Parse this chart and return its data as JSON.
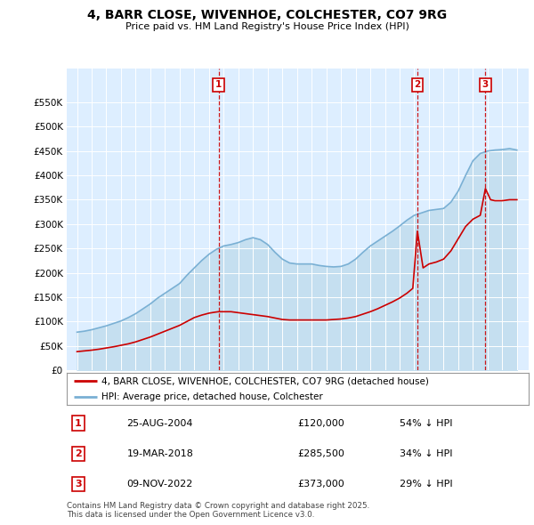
{
  "title": "4, BARR CLOSE, WIVENHOE, COLCHESTER, CO7 9RG",
  "subtitle": "Price paid vs. HM Land Registry's House Price Index (HPI)",
  "sale_color": "#cc0000",
  "hpi_color": "#7ab0d4",
  "hpi_fill_color": "#c5dff0",
  "plot_bg": "#ddeeff",
  "ylim": [
    0,
    620000
  ],
  "xlim": [
    1994.3,
    2025.8
  ],
  "yticks": [
    0,
    50000,
    100000,
    150000,
    200000,
    250000,
    300000,
    350000,
    400000,
    450000,
    500000,
    550000
  ],
  "ytick_labels": [
    "£0",
    "£50K",
    "£100K",
    "£150K",
    "£200K",
    "£250K",
    "£300K",
    "£350K",
    "£400K",
    "£450K",
    "£500K",
    "£550K"
  ],
  "legend_label_sale": "4, BARR CLOSE, WIVENHOE, COLCHESTER, CO7 9RG (detached house)",
  "legend_label_hpi": "HPI: Average price, detached house, Colchester",
  "transactions": [
    {
      "num": 1,
      "date": "25-AUG-2004",
      "price": 120000,
      "pct": "54%",
      "x": 2004.65
    },
    {
      "num": 2,
      "date": "19-MAR-2018",
      "price": 285500,
      "pct": "34%",
      "x": 2018.21
    },
    {
      "num": 3,
      "date": "09-NOV-2022",
      "price": 373000,
      "pct": "29%",
      "x": 2022.85
    }
  ],
  "footer": "Contains HM Land Registry data © Crown copyright and database right 2025.\nThis data is licensed under the Open Government Licence v3.0.",
  "hpi_x": [
    1995.0,
    1995.5,
    1996.0,
    1996.5,
    1997.0,
    1997.5,
    1998.0,
    1998.5,
    1999.0,
    1999.5,
    2000.0,
    2000.5,
    2001.0,
    2001.5,
    2002.0,
    2002.5,
    2003.0,
    2003.5,
    2004.0,
    2004.5,
    2005.0,
    2005.5,
    2006.0,
    2006.5,
    2007.0,
    2007.5,
    2008.0,
    2008.5,
    2009.0,
    2009.5,
    2010.0,
    2010.5,
    2011.0,
    2011.5,
    2012.0,
    2012.5,
    2013.0,
    2013.5,
    2014.0,
    2014.5,
    2015.0,
    2015.5,
    2016.0,
    2016.5,
    2017.0,
    2017.5,
    2018.0,
    2018.5,
    2019.0,
    2019.5,
    2020.0,
    2020.5,
    2021.0,
    2021.5,
    2022.0,
    2022.5,
    2023.0,
    2023.5,
    2024.0,
    2024.5,
    2025.0
  ],
  "hpi_y": [
    78000,
    80000,
    83000,
    87000,
    91000,
    96000,
    101000,
    108000,
    116000,
    126000,
    136000,
    148000,
    158000,
    168000,
    178000,
    195000,
    210000,
    225000,
    238000,
    248000,
    255000,
    258000,
    262000,
    268000,
    272000,
    268000,
    258000,
    242000,
    228000,
    220000,
    218000,
    218000,
    218000,
    215000,
    213000,
    212000,
    213000,
    218000,
    228000,
    242000,
    255000,
    265000,
    275000,
    285000,
    296000,
    308000,
    318000,
    323000,
    328000,
    330000,
    332000,
    345000,
    368000,
    400000,
    430000,
    445000,
    450000,
    452000,
    453000,
    455000,
    452000
  ],
  "sale_x": [
    1995.0,
    1995.5,
    1996.0,
    1996.5,
    1997.0,
    1997.5,
    1998.0,
    1998.5,
    1999.0,
    1999.5,
    2000.0,
    2000.5,
    2001.0,
    2001.5,
    2002.0,
    2002.5,
    2003.0,
    2003.5,
    2004.0,
    2004.4,
    2004.65,
    2005.5,
    2006.0,
    2006.5,
    2007.0,
    2007.5,
    2008.0,
    2008.5,
    2009.0,
    2009.5,
    2010.0,
    2010.5,
    2011.0,
    2011.5,
    2012.0,
    2012.5,
    2013.0,
    2013.5,
    2014.0,
    2014.5,
    2015.0,
    2015.5,
    2016.0,
    2016.5,
    2017.0,
    2017.5,
    2017.9,
    2018.21,
    2018.6,
    2019.0,
    2019.5,
    2020.0,
    2020.5,
    2021.0,
    2021.5,
    2022.0,
    2022.5,
    2022.85,
    2023.2,
    2023.5,
    2024.0,
    2024.5,
    2025.0
  ],
  "sale_y": [
    38000,
    39500,
    41000,
    43000,
    45500,
    48000,
    51000,
    54000,
    58000,
    63000,
    68000,
    74000,
    80000,
    86000,
    92000,
    100000,
    108000,
    113000,
    117000,
    119000,
    120000,
    120000,
    118000,
    116000,
    114000,
    112000,
    110000,
    107000,
    104000,
    103000,
    103000,
    103000,
    103000,
    103000,
    103000,
    104000,
    105000,
    107000,
    110000,
    115000,
    120000,
    126000,
    133000,
    140000,
    148000,
    158000,
    168000,
    285500,
    210000,
    218000,
    222000,
    228000,
    245000,
    270000,
    295000,
    310000,
    318000,
    373000,
    350000,
    348000,
    348000,
    350000,
    350000
  ]
}
